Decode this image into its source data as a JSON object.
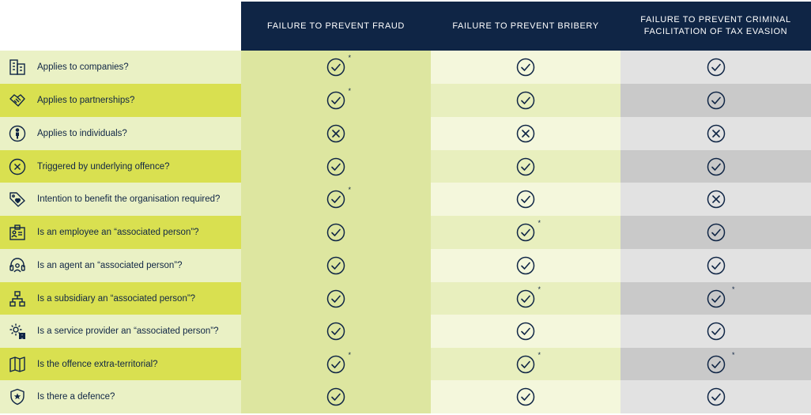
{
  "colors": {
    "header_bg": "#0f2545",
    "text": "#0f2545",
    "q_light": "#eaf1c5",
    "q_dark": "#d9e050",
    "c1_light": "#dde6a0",
    "c1_dark": "#dde6a0",
    "c2_light": "#f4f7dc",
    "c2_dark": "#e8efbe",
    "c3_light": "#e2e2e2",
    "c3_dark": "#c9c9c9"
  },
  "columns": [
    {
      "label": "FAILURE TO PREVENT FRAUD"
    },
    {
      "label": "FAILURE TO PREVENT BRIBERY"
    },
    {
      "label": "FAILURE TO PREVENT CRIMINAL FACILITATION OF TAX EVASION"
    }
  ],
  "rows": [
    {
      "icon": "building-icon",
      "question": "Applies to companies?",
      "cells": [
        {
          "v": "yes",
          "star": "*"
        },
        {
          "v": "yes",
          "star": ""
        },
        {
          "v": "yes",
          "star": ""
        }
      ]
    },
    {
      "icon": "handshake-icon",
      "question": "Applies to partnerships?",
      "cells": [
        {
          "v": "yes",
          "star": "*"
        },
        {
          "v": "yes",
          "star": ""
        },
        {
          "v": "yes",
          "star": ""
        }
      ]
    },
    {
      "icon": "person-icon",
      "question": "Applies to individuals?",
      "cells": [
        {
          "v": "no",
          "star": ""
        },
        {
          "v": "no",
          "star": ""
        },
        {
          "v": "no",
          "star": ""
        }
      ]
    },
    {
      "icon": "cross-circle-icon",
      "question": "Triggered by underlying offence?",
      "cells": [
        {
          "v": "yes",
          "star": ""
        },
        {
          "v": "yes",
          "star": ""
        },
        {
          "v": "yes",
          "star": ""
        }
      ]
    },
    {
      "icon": "tag-heart-icon",
      "question": "Intention to benefit the organisation required?",
      "cells": [
        {
          "v": "yes",
          "star": "*"
        },
        {
          "v": "yes",
          "star": ""
        },
        {
          "v": "no",
          "star": ""
        }
      ]
    },
    {
      "icon": "id-badge-icon",
      "question": "Is an employee an “associated person”?",
      "cells": [
        {
          "v": "yes",
          "star": ""
        },
        {
          "v": "yes",
          "star": "*"
        },
        {
          "v": "yes",
          "star": ""
        }
      ]
    },
    {
      "icon": "headset-icon",
      "question": "Is an agent an “associated person”?",
      "cells": [
        {
          "v": "yes",
          "star": ""
        },
        {
          "v": "yes",
          "star": ""
        },
        {
          "v": "yes",
          "star": ""
        }
      ]
    },
    {
      "icon": "org-chart-icon",
      "question": "Is a subsidiary an “associated person”?",
      "cells": [
        {
          "v": "yes",
          "star": ""
        },
        {
          "v": "yes",
          "star": "*"
        },
        {
          "v": "yes",
          "star": "*"
        }
      ]
    },
    {
      "icon": "gear-person-icon",
      "question": "Is a service provider an “associated person”?",
      "cells": [
        {
          "v": "yes",
          "star": ""
        },
        {
          "v": "yes",
          "star": ""
        },
        {
          "v": "yes",
          "star": ""
        }
      ]
    },
    {
      "icon": "map-icon",
      "question": "Is the offence extra-territorial?",
      "cells": [
        {
          "v": "yes",
          "star": "*"
        },
        {
          "v": "yes",
          "star": "*"
        },
        {
          "v": "yes",
          "star": "*"
        }
      ]
    },
    {
      "icon": "shield-star-icon",
      "question": "Is there a defence?",
      "cells": [
        {
          "v": "yes",
          "star": ""
        },
        {
          "v": "yes",
          "star": ""
        },
        {
          "v": "yes",
          "star": ""
        }
      ]
    }
  ]
}
